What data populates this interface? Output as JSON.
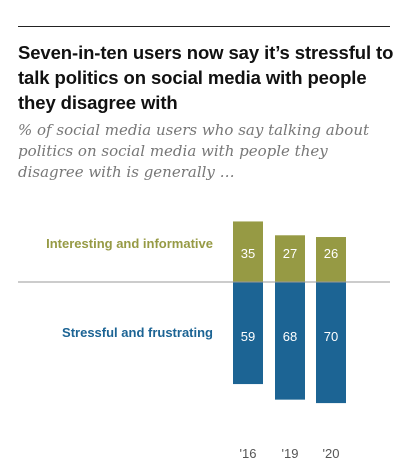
{
  "title": "Seven-in-ten users now say it’s stressful to talk politics on social media with people they disagree with",
  "subtitle": "% of social media users who say talking about politics on social media with people they disagree with is generally …",
  "colors": {
    "interesting": "#969a44",
    "stressful": "#1c6494"
  },
  "chart_data": {
    "type": "bar",
    "stacking": "diverging",
    "categories": [
      "'16",
      "'19",
      "'20"
    ],
    "series": [
      {
        "name": "Interesting and informative",
        "values": [
          35,
          27,
          26
        ],
        "direction": "up",
        "color": "#969a44"
      },
      {
        "name": "Stressful and frustrating",
        "values": [
          59,
          68,
          70
        ],
        "direction": "down",
        "color": "#1c6494"
      }
    ],
    "baseline": "horizontal rule",
    "grid": false,
    "legend": "inline labels left of bars"
  }
}
